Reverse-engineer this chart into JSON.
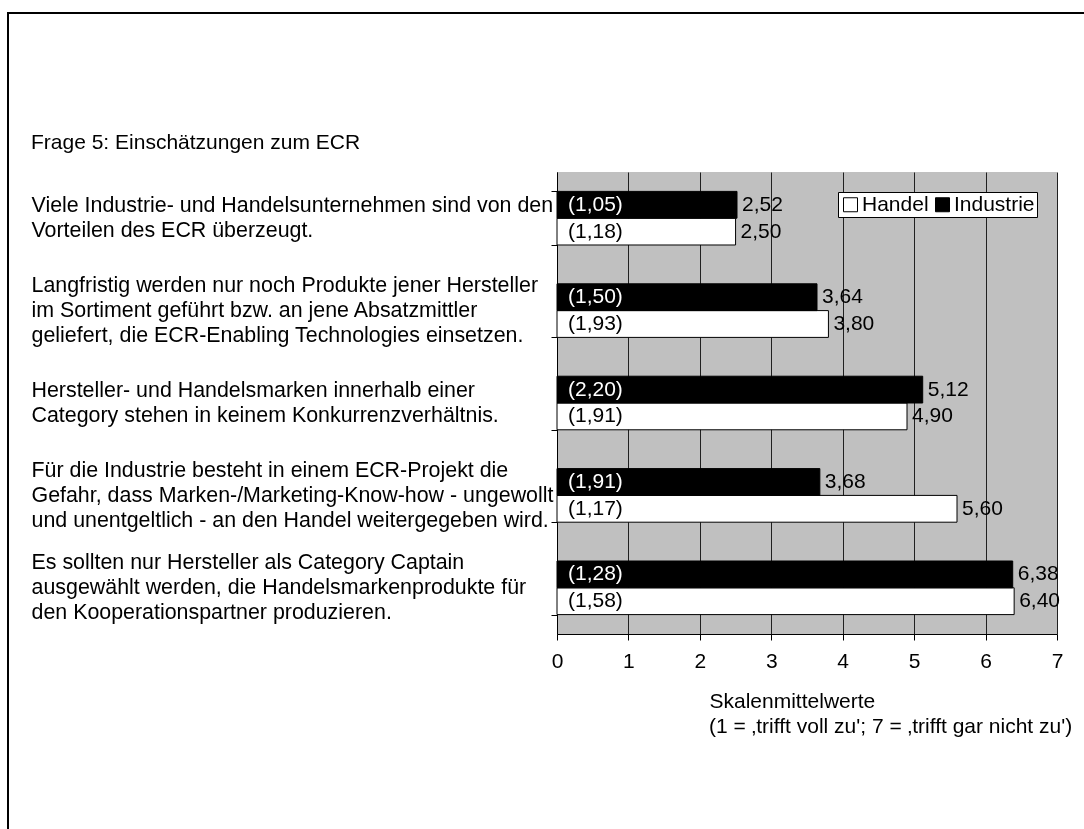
{
  "chart_data": {
    "type": "bar",
    "orientation": "horizontal",
    "title": "Frage 5: Einschätzungen zum ECR",
    "xlabel": "Skalenmittelwerte",
    "categories": [
      "Viele Industrie- und Handelsunternehmen sind von den Vorteilen des ECR überzeugt.",
      "Langfristig werden nur noch Produkte jener Hersteller im Sortiment geführt bzw. an jene Absatzmittler geliefert, die ECR-Enabling Technologies einsetzen.",
      "Hersteller- und Handelsmarken innerhalb einer Category stehen in keinem Konkurrenzverhältnis.",
      "Für die Industrie besteht in einem ECR-Projekt die Gefahr, dass Marken-/Marketing-Know-how - ungewollt und unentgeltlich - an den Handel weitergegeben wird.",
      "Es sollten nur Hersteller als Category Captain ausgewählt werden, die Handelsmarkenprodukte für den Kooperationspartner produzieren."
    ],
    "series": [
      {
        "name": "Handel",
        "color": "#ffffff",
        "values": [
          2.5,
          3.8,
          4.9,
          5.6,
          6.4
        ],
        "value_labels": [
          "2,50",
          "3,80",
          "4,90",
          "5,60",
          "6,40"
        ]
      },
      {
        "name": "Industrie",
        "color": "#000000",
        "values": [
          2.52,
          3.64,
          5.12,
          3.68,
          6.38
        ],
        "value_labels": [
          "2,52",
          "3,64",
          "5,12",
          "3,68",
          "6,38"
        ]
      }
    ],
    "xlim": [
      0,
      7
    ],
    "xticks": [
      0,
      1,
      2,
      3,
      4,
      5,
      6,
      7
    ],
    "grid": "x",
    "legend": "top right",
    "annotations": [
      {
        "text": "(1,05)",
        "y": "Viele Industrie- und Handelsunternehmen sind von den Vorteilen des ECR überzeugt."
      },
      {
        "text": "(1,18)",
        "y": "Viele Industrie- und Handelsunternehmen sind von den Vorteilen des ECR überzeugt."
      },
      {
        "text": "(1,50)",
        "y": "Langfristig werden nur noch Produkte jener Hersteller im Sortiment geführt bzw. an jene Absatzmittler geliefert, die ECR-Enabling Technologies einsetzen."
      },
      {
        "text": "(1,93)",
        "y": "Langfristig werden nur noch Produkte jener Hersteller im Sortiment geführt bzw. an jene Absatzmittler geliefert, die ECR-Enabling Technologies einsetzen."
      },
      {
        "text": "(2,20)",
        "y": "Hersteller- und Handelsmarken innerhalb einer Category stehen in keinem Konkurrenzverhältnis."
      },
      {
        "text": "(1,91)",
        "y": "Hersteller- und Handelsmarken innerhalb einer Category stehen in keinem Konkurrenzverhältnis."
      },
      {
        "text": "(1,91)",
        "y": "Für die Industrie besteht in einem ECR-Projekt die Gefahr, dass Marken-/Marketing-Know-how - ungewollt und unentgeltlich - an den Handel weitergegeben wird."
      },
      {
        "text": "(1,17)",
        "y": "Für die Industrie besteht in einem ECR-Projekt die Gefahr, dass Marken-/Marketing-Know-how - ungewollt und unentgeltlich - an den Handel weitergegeben wird."
      },
      {
        "text": "(1,28)",
        "y": "Es sollten nur Hersteller als Category Captain ausgewählt werden, die Handelsmarkenprodukte für den Kooperationspartner produzieren."
      },
      {
        "text": "(1,58)",
        "y": "Es sollten nur Hersteller als Category Captain ausgewählt werden, die Handelsmarkenprodukte für den Kooperationspartner produzieren."
      },
      "(1 = ‚trifft voll zu'; 7 = ‚trifft gar nicht zu')"
    ]
  }
}
